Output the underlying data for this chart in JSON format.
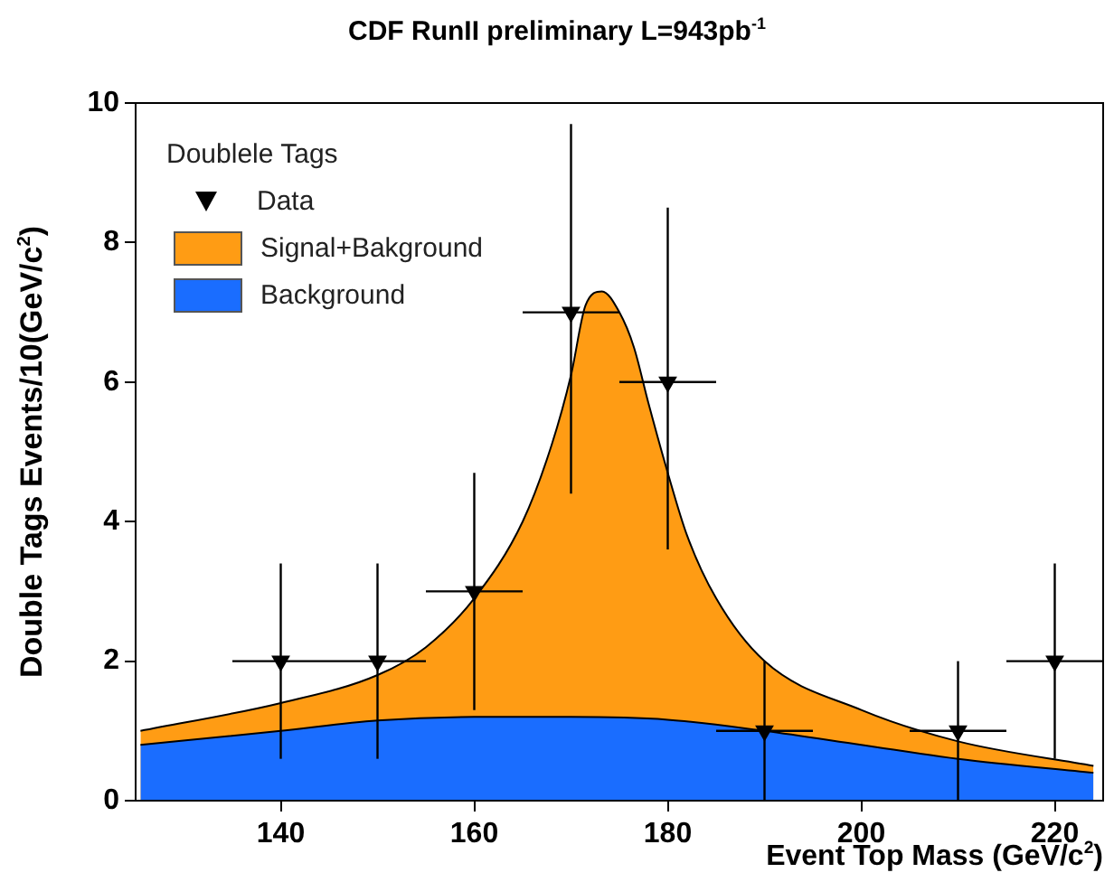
{
  "chart_data": {
    "type": "area",
    "title": "CDF RunII preliminary L=943pb$^{-1}$",
    "xlabel": "Event Top Mass (GeV/c$^{2}$)",
    "ylabel": "Double Tags Events/10(GeV/c$^{2}$)",
    "legend_title": "Doublele Tags",
    "legend": "top left",
    "grid": false,
    "xlim": [
      125,
      225
    ],
    "xticks": [
      140,
      160,
      180,
      200,
      220
    ],
    "ylim": [
      0,
      10
    ],
    "yticks": [
      0,
      2,
      4,
      6,
      8,
      10
    ],
    "series": [
      {
        "name": "Data",
        "type": "scatter",
        "marker": "triangle",
        "color": "#000000",
        "x": [
          140,
          150,
          160,
          170,
          180,
          190,
          210,
          220
        ],
        "values": [
          2,
          2,
          3,
          7,
          6,
          1,
          1,
          2
        ],
        "errors": [
          [
            0.6,
            3.4
          ],
          [
            0.6,
            3.4
          ],
          [
            1.3,
            4.7
          ],
          [
            4.4,
            9.7
          ],
          [
            3.6,
            8.5
          ],
          [
            0,
            2.0
          ],
          [
            0,
            2.0
          ],
          [
            0.6,
            3.4
          ]
        ],
        "xerrors": [
          5,
          5,
          5,
          5,
          5,
          5,
          5,
          5
        ]
      },
      {
        "name": "Signal+Bakground",
        "color": "#ff9c14",
        "x": [
          125.5,
          140,
          150,
          155,
          160,
          165,
          168,
          170,
          171.5,
          173.2,
          175,
          176.5,
          178,
          180,
          182,
          185,
          190,
          200,
          210,
          224
        ],
        "values": [
          1.0,
          1.4,
          1.8,
          2.2,
          2.9,
          4.0,
          5.1,
          6.1,
          7.1,
          7.3,
          7.0,
          6.5,
          5.7,
          4.7,
          3.8,
          2.9,
          2.0,
          1.3,
          0.85,
          0.5
        ]
      },
      {
        "name": "Background",
        "color": "#1a6dff",
        "x": [
          125.5,
          140,
          150,
          160,
          170,
          180,
          190,
          200,
          210,
          224
        ],
        "values": [
          0.8,
          1.0,
          1.15,
          1.2,
          1.2,
          1.16,
          1.0,
          0.8,
          0.6,
          0.4
        ]
      }
    ]
  }
}
